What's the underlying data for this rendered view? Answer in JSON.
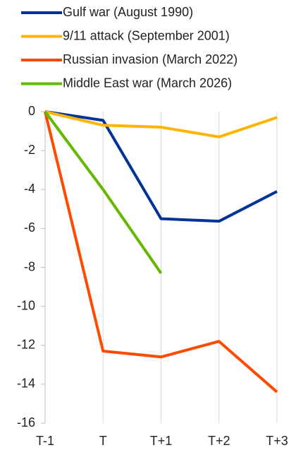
{
  "chart_data": {
    "type": "line",
    "categories": [
      "T-1",
      "T",
      "T+1",
      "T+2",
      "T+3"
    ],
    "series": [
      {
        "name": "Gulf war (August 1990)",
        "color": "#003299",
        "values": [
          0,
          -0.45,
          -5.5,
          -5.63,
          -4.1
        ]
      },
      {
        "name": "9/11 attack (September 2001)",
        "color": "#ffb400",
        "values": [
          0,
          -0.7,
          -0.8,
          -1.3,
          -0.3
        ]
      },
      {
        "name": "Russian invasion (March 2022)",
        "color": "#ff4b00",
        "values": [
          0,
          -12.3,
          -12.6,
          -11.8,
          -14.4
        ]
      },
      {
        "name": "Middle East war (March 2026)",
        "color": "#65b800",
        "values": [
          0,
          -4,
          -8.3,
          null,
          null
        ]
      }
    ],
    "ylim": [
      -16,
      0
    ],
    "yticks": [
      0,
      -2,
      -4,
      -6,
      -8,
      -10,
      -12,
      -14,
      -16
    ],
    "grid": true,
    "legend": "top"
  }
}
